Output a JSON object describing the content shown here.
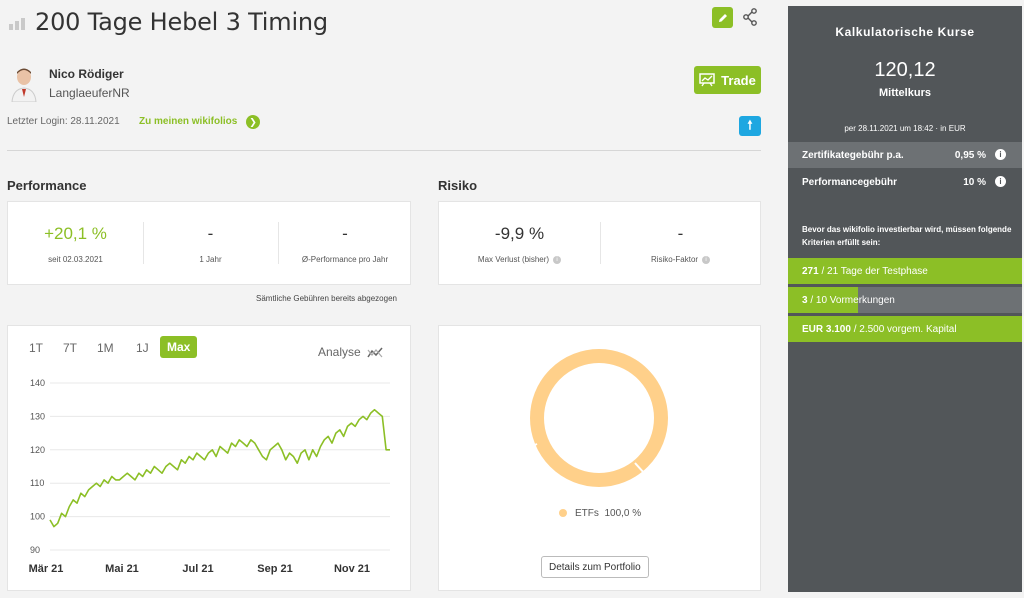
{
  "header": {
    "title": "200 Tage Hebel 3 Timing"
  },
  "trader": {
    "name": "Nico Rödiger",
    "handle": "LanglaeuferNR",
    "last_login": "Letzter Login: 28.11.2021",
    "wiki_link": "Zu meinen wikifolios",
    "trade_label": "Trade"
  },
  "performance": {
    "heading": "Performance",
    "items": [
      {
        "value": "+20,1 %",
        "label": "seit 02.03.2021",
        "color": "#8cbf26"
      },
      {
        "value": "-",
        "label": "1 Jahr"
      },
      {
        "value": "-",
        "label": "Ø-Performance pro Jahr"
      }
    ],
    "note": "Sämtliche Gebühren bereits abgezogen"
  },
  "risk": {
    "heading": "Risiko",
    "items": [
      {
        "value": "-9,9 %",
        "label": "Max Verlust (bisher)"
      },
      {
        "value": "-",
        "label": "Risiko-Faktor"
      }
    ]
  },
  "chart": {
    "ranges": [
      "1T",
      "7T",
      "1M",
      "1J",
      "Max"
    ],
    "active_range": "Max",
    "analyse_label": "Analyse"
  },
  "chart_data": {
    "type": "line",
    "title": "",
    "xlabel": "",
    "ylabel": "",
    "ylim": [
      90,
      140
    ],
    "yticks": [
      140,
      130,
      120,
      110,
      100,
      90
    ],
    "xticks": [
      "Mär 21",
      "Mai 21",
      "Jul 21",
      "Sep 21",
      "Nov 21"
    ],
    "grid": true,
    "series": [
      {
        "color": "#8cbf26",
        "x": [
          0,
          1,
          2,
          3,
          4,
          5,
          6,
          7,
          8,
          9,
          10,
          11,
          12,
          13,
          14,
          15,
          16,
          17,
          18,
          19,
          20,
          21,
          22,
          23,
          24,
          25,
          26,
          27,
          28,
          29,
          30,
          31,
          32,
          33,
          34,
          35,
          36,
          37,
          38,
          39,
          40,
          41,
          42,
          43,
          44,
          45,
          46,
          47,
          48,
          49,
          50,
          51,
          52,
          53,
          54,
          55,
          56,
          57,
          58,
          59,
          60,
          61,
          62,
          63,
          64,
          65,
          66,
          67,
          68,
          69,
          70,
          71,
          72,
          73,
          74,
          75,
          76,
          77,
          78,
          79,
          80,
          81,
          82,
          83,
          84,
          85,
          86,
          87,
          88
        ],
        "values": [
          99,
          97,
          98,
          101,
          100,
          103,
          105,
          104,
          107,
          106,
          108,
          109,
          110,
          109,
          111,
          110,
          112,
          111,
          111,
          112,
          113,
          112,
          111,
          113,
          112,
          114,
          113,
          115,
          114,
          113,
          115,
          116,
          115,
          114,
          117,
          116,
          118,
          117,
          119,
          118,
          117,
          119,
          120,
          118,
          121,
          120,
          119,
          122,
          121,
          123,
          122,
          121,
          123,
          122,
          120,
          118,
          117,
          120,
          121,
          122,
          120,
          117,
          119,
          118,
          116,
          119,
          120,
          117,
          120,
          118,
          121,
          123,
          124,
          122,
          125,
          126,
          124,
          127,
          128,
          127,
          129,
          130,
          129,
          131,
          132,
          131,
          130,
          120,
          120
        ]
      }
    ]
  },
  "portfolio": {
    "legend_label": "ETFs",
    "legend_value": "100,0 %",
    "legend_color": "#ffd08a",
    "details_button": "Details zum Portfolio"
  },
  "panel": {
    "title": "Kalkulatorische Kurse",
    "price": "120,12",
    "price_label": "Mittelkurs",
    "date": "per 28.11.2021 um 18:42 · in EUR",
    "fees": [
      {
        "label": "Zertifikategebühr p.a.",
        "value": "0,95 %"
      },
      {
        "label": "Performancegebühr",
        "value": "10 %"
      }
    ],
    "criteria_note": "Bevor das wikifolio investierbar wird, müssen folgende Kriterien erfüllt sein:",
    "criteria": [
      {
        "strong": "271",
        "rest": " / 21 Tage der Testphase",
        "progress": 1.0
      },
      {
        "strong": "3",
        "rest": " / 10 Vormerkungen",
        "progress": 0.3
      },
      {
        "strong": "EUR 3.100",
        "rest": " / 2.500 vorgem. Kapital",
        "progress": 1.0
      }
    ]
  }
}
